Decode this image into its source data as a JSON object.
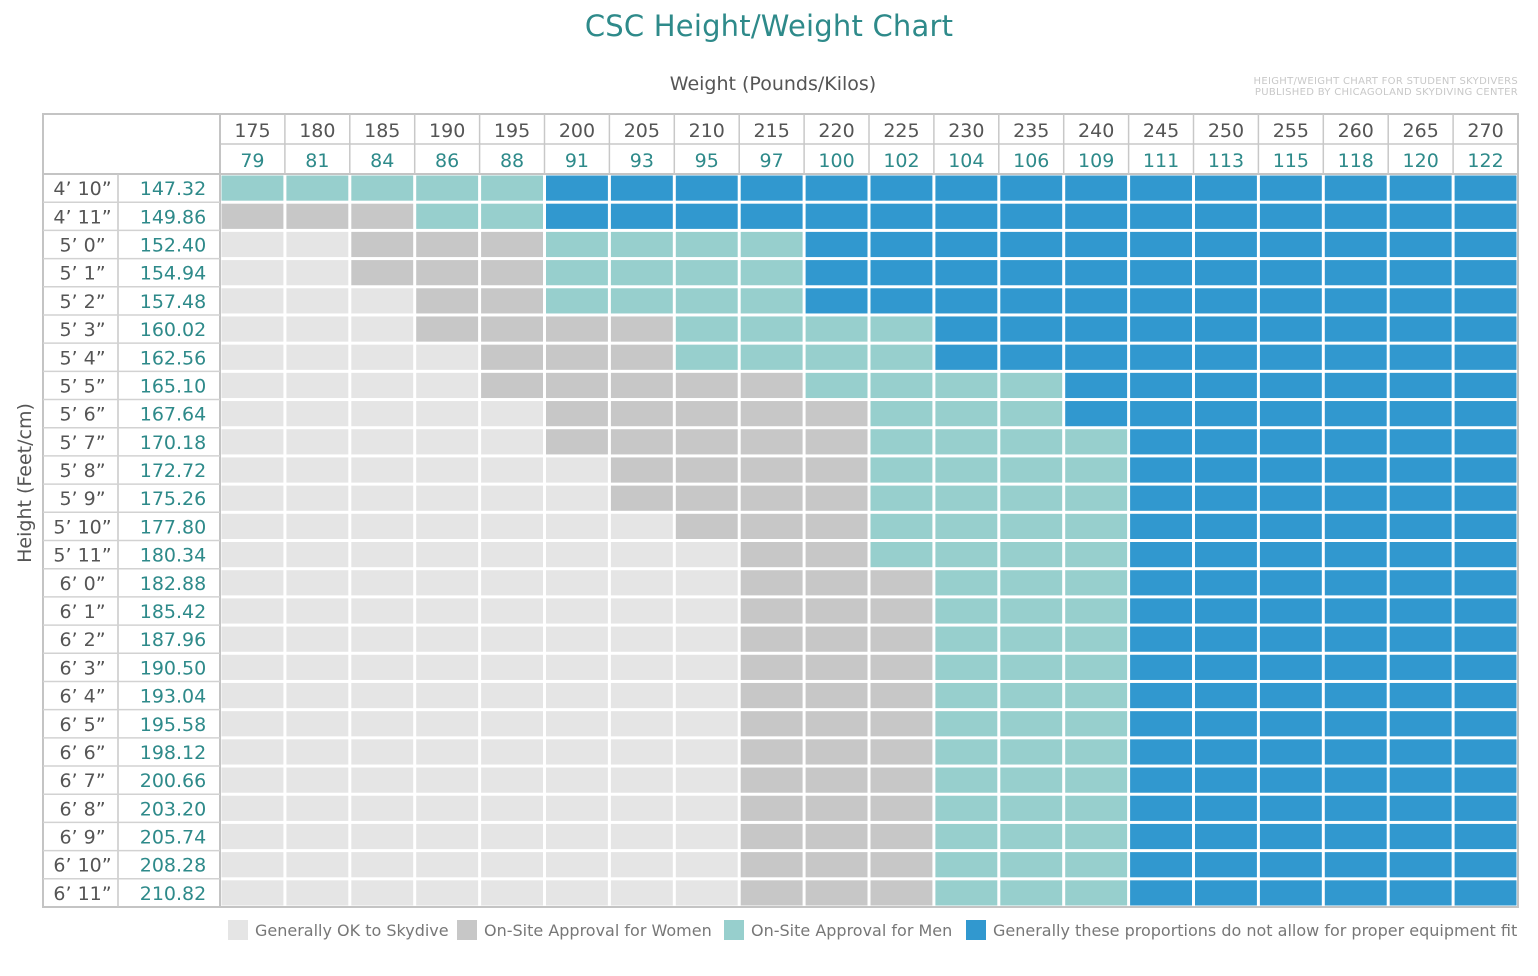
{
  "chart_data": {
    "type": "heatmap",
    "title": "CSC Height/Weight Chart",
    "xlabel": "Weight (Pounds/Kilos)",
    "ylabel": "Height (Feet/cm)",
    "publisher_note": [
      "HEIGHT/WEIGHT CHART FOR STUDENT SKYDIVERS",
      "PUBLISHED BY CHICAGOLAND SKYDIVING CENTER"
    ],
    "weights_lbs": [
      "175",
      "180",
      "185",
      "190",
      "195",
      "200",
      "205",
      "210",
      "215",
      "220",
      "225",
      "230",
      "235",
      "240",
      "245",
      "250",
      "255",
      "260",
      "265",
      "270"
    ],
    "weights_kg": [
      "79",
      "81",
      "84",
      "86",
      "88",
      "91",
      "93",
      "95",
      "97",
      "100",
      "102",
      "104",
      "106",
      "109",
      "111",
      "113",
      "115",
      "118",
      "120",
      "122"
    ],
    "heights_ft": [
      "4’ 10”",
      "4’ 11”",
      "5’ 0”",
      "5’ 1”",
      "5’ 2”",
      "5’ 3”",
      "5’ 4”",
      "5’ 5”",
      "5’ 6”",
      "5’ 7”",
      "5’ 8”",
      "5’ 9”",
      "5’ 10”",
      "5’ 11”",
      "6’ 0”",
      "6’ 1”",
      "6’ 2”",
      "6’ 3”",
      "6’ 4”",
      "6’ 5”",
      "6’ 6”",
      "6’ 7”",
      "6’ 8”",
      "6’ 9”",
      "6’ 10”",
      "6’ 11”"
    ],
    "heights_cm": [
      "147.32",
      "149.86",
      "152.40",
      "154.94",
      "157.48",
      "160.02",
      "162.56",
      "165.10",
      "167.64",
      "170.18",
      "172.72",
      "175.26",
      "177.80",
      "180.34",
      "182.88",
      "185.42",
      "187.96",
      "190.50",
      "193.04",
      "195.58",
      "198.12",
      "200.66",
      "203.20",
      "205.74",
      "208.28",
      "210.82"
    ],
    "category_boundaries_note": "per height row: number of weight columns in category 0 (OK), 0+1 (women), 0+1+2 (men); rest are category 3",
    "category_breaks": [
      [
        0,
        0,
        5
      ],
      [
        0,
        3,
        5
      ],
      [
        2,
        5,
        9
      ],
      [
        2,
        5,
        9
      ],
      [
        3,
        5,
        9
      ],
      [
        3,
        7,
        11
      ],
      [
        4,
        7,
        11
      ],
      [
        4,
        9,
        13
      ],
      [
        5,
        10,
        13
      ],
      [
        5,
        10,
        14
      ],
      [
        6,
        10,
        14
      ],
      [
        6,
        10,
        14
      ],
      [
        7,
        10,
        14
      ],
      [
        8,
        10,
        14
      ],
      [
        8,
        11,
        14
      ],
      [
        8,
        11,
        14
      ],
      [
        8,
        11,
        14
      ],
      [
        8,
        11,
        14
      ],
      [
        8,
        11,
        14
      ],
      [
        8,
        11,
        14
      ],
      [
        8,
        11,
        14
      ],
      [
        8,
        11,
        14
      ],
      [
        8,
        11,
        14
      ],
      [
        8,
        11,
        14
      ],
      [
        8,
        11,
        14
      ],
      [
        8,
        11,
        14
      ]
    ],
    "legend": [
      {
        "label": "Generally OK to Skydive",
        "color": "#e5e5e5"
      },
      {
        "label": "On-Site Approval for Women",
        "color": "#c7c7c7"
      },
      {
        "label": "On-Site Approval for Men",
        "color": "#97cfcd"
      },
      {
        "label": "Generally these proportions do not allow for proper equipment fit",
        "color": "#3198cf"
      }
    ],
    "colors": {
      "accent": "#2e8a8a",
      "text": "#555555",
      "grid": "#c8c8c8"
    }
  }
}
